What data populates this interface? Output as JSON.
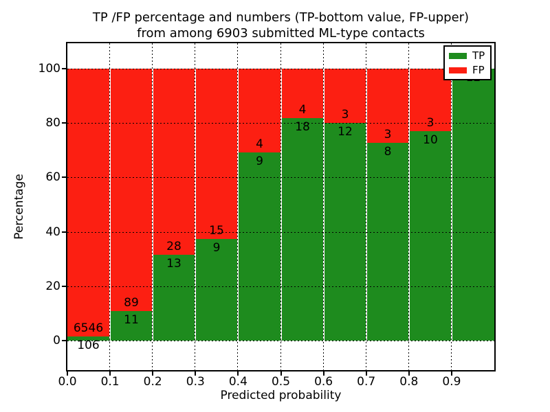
{
  "chart_data": {
    "type": "bar",
    "variant": "stacked-percentage",
    "title": "TP /FP percentage and numbers (TP-bottom value, FP-upper)",
    "subtitle": "from among 6903 submitted ML-type contacts",
    "xlabel": "Predicted probability",
    "ylabel": "Percentage",
    "xlim": [
      0.0,
      1.0
    ],
    "ylim": [
      -10.75,
      109.25
    ],
    "xticks": [
      "0.0",
      "0.1",
      "0.2",
      "0.3",
      "0.4",
      "0.5",
      "0.6",
      "0.7",
      "0.8",
      "0.9"
    ],
    "yticks": [
      0,
      20,
      40,
      60,
      80,
      100
    ],
    "grid": "dotted",
    "legend_position": "upper-right",
    "categories": [
      "0.0-0.1",
      "0.1-0.2",
      "0.2-0.3",
      "0.3-0.4",
      "0.4-0.5",
      "0.5-0.6",
      "0.6-0.7",
      "0.7-0.8",
      "0.8-0.9",
      "0.9-1.0"
    ],
    "series": [
      {
        "name": "TP",
        "color": "#1e8b1e",
        "values": [
          106,
          11,
          13,
          9,
          9,
          18,
          12,
          8,
          10,
          12
        ]
      },
      {
        "name": "FP",
        "color": "#fc1f12",
        "values": [
          6546,
          89,
          28,
          15,
          4,
          4,
          3,
          3,
          3,
          0
        ]
      }
    ],
    "tp_percent": [
      1.6,
      11.0,
      31.7,
      37.5,
      69.2,
      81.8,
      80.0,
      72.7,
      76.9,
      100.0
    ],
    "bar_label_rule": "TP count printed just below the TP/FP boundary, FP count just above it",
    "background_color": "#ffffff",
    "frame_color": "#000000"
  }
}
